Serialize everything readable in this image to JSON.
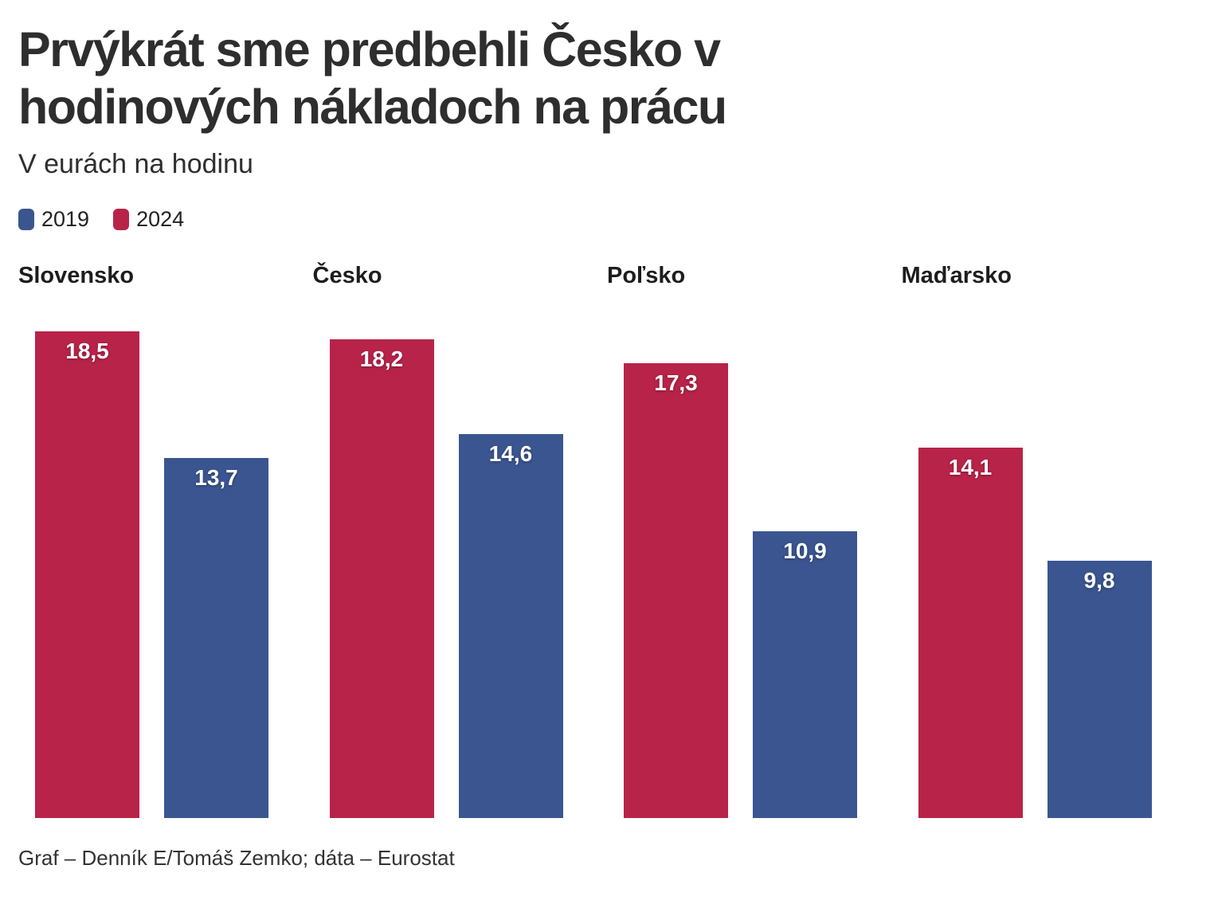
{
  "page": {
    "title_line1": "Prvýkrát sme predbehli Česko v",
    "title_line2": "hodinových nákladoch na prácu",
    "subtitle": "V eurách na hodinu",
    "footer": "Graf – Denník E/Tomáš Zemko; dáta – Eurostat"
  },
  "legend": {
    "items": [
      {
        "label": "2019",
        "color": "#3a5590"
      },
      {
        "label": "2024",
        "color": "#b82349"
      }
    ]
  },
  "chart_data": {
    "type": "bar",
    "title": "Prvýkrát sme predbehli Česko v hodinových nákladoch na prácu",
    "subtitle": "V eurách na hodinu",
    "categories": [
      "Slovensko",
      "Česko",
      "Poľsko",
      "Maďarsko"
    ],
    "series": [
      {
        "name": "2024",
        "color": "#b82349",
        "values": [
          18.5,
          18.2,
          17.3,
          14.1
        ],
        "value_labels": [
          "18,5",
          "18,2",
          "17,3",
          "14,1"
        ]
      },
      {
        "name": "2019",
        "color": "#3a5590",
        "values": [
          13.7,
          14.6,
          10.9,
          9.8
        ],
        "value_labels": [
          "13,7",
          "14,6",
          "10,9",
          "9,8"
        ]
      }
    ],
    "bar_order_in_group": [
      "2024",
      "2019"
    ],
    "ylim": [
      0,
      18.5
    ],
    "grid": false,
    "axes_shown": false,
    "legend_position": "top-left",
    "value_label_format": "comma-decimal"
  }
}
